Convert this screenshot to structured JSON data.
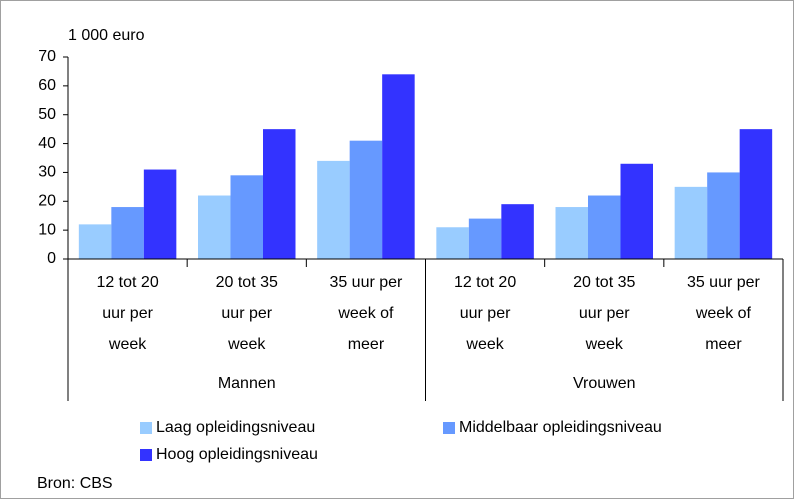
{
  "chart_data": {
    "type": "bar",
    "y_label": "1 000 euro",
    "categories": [
      [
        "12 tot 20",
        "uur per",
        "week"
      ],
      [
        "20 tot 35",
        "uur per",
        "week"
      ],
      [
        "35 uur per",
        "week of",
        "meer"
      ],
      [
        "12 tot 20",
        "uur per",
        "week"
      ],
      [
        "20 tot 35",
        "uur per",
        "week"
      ],
      [
        "35 uur per",
        "week of",
        "meer"
      ]
    ],
    "groups": [
      {
        "name": "Mannen",
        "size": 3
      },
      {
        "name": "Vrouwen",
        "size": 3
      }
    ],
    "series": [
      {
        "name": "Laag opleidingsniveau",
        "color": "#99ccff",
        "values": [
          12,
          22,
          34,
          11,
          18,
          25
        ]
      },
      {
        "name": "Middelbaar opleidingsniveau",
        "color": "#6699ff",
        "values": [
          18,
          29,
          41,
          14,
          22,
          30
        ]
      },
      {
        "name": "Hoog opleidingsniveau",
        "color": "#3333ff",
        "values": [
          31,
          45,
          64,
          19,
          33,
          45
        ]
      }
    ],
    "ylim": [
      0,
      70
    ],
    "yticks": [
      0,
      10,
      20,
      30,
      40,
      50,
      60,
      70
    ],
    "source": "Bron: CBS"
  }
}
